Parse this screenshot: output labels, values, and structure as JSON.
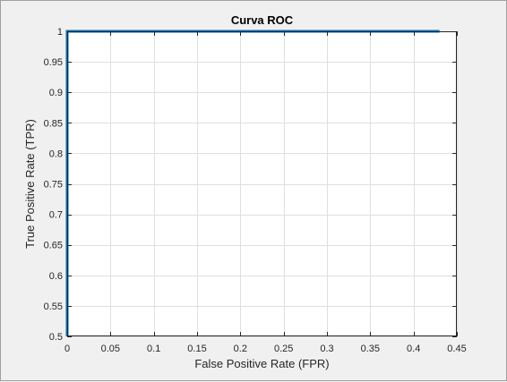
{
  "chart_data": {
    "type": "line",
    "title": "Curva ROC",
    "xlabel": "False Positive Rate (FPR)",
    "ylabel": "True Positive Rate (TPR)",
    "xlim": [
      0,
      0.45
    ],
    "ylim": [
      0.5,
      1
    ],
    "x_ticks": [
      "0",
      "0.05",
      "0.1",
      "0.15",
      "0.2",
      "0.25",
      "0.3",
      "0.35",
      "0.4",
      "0.45"
    ],
    "y_ticks": [
      "0.5",
      "0.55",
      "0.6",
      "0.65",
      "0.7",
      "0.75",
      "0.8",
      "0.85",
      "0.9",
      "0.95",
      "1"
    ],
    "grid": true,
    "series": [
      {
        "color": "#0072bd",
        "x": [
          0,
          0,
          0.43
        ],
        "y": [
          0.5,
          1,
          1
        ]
      }
    ]
  }
}
